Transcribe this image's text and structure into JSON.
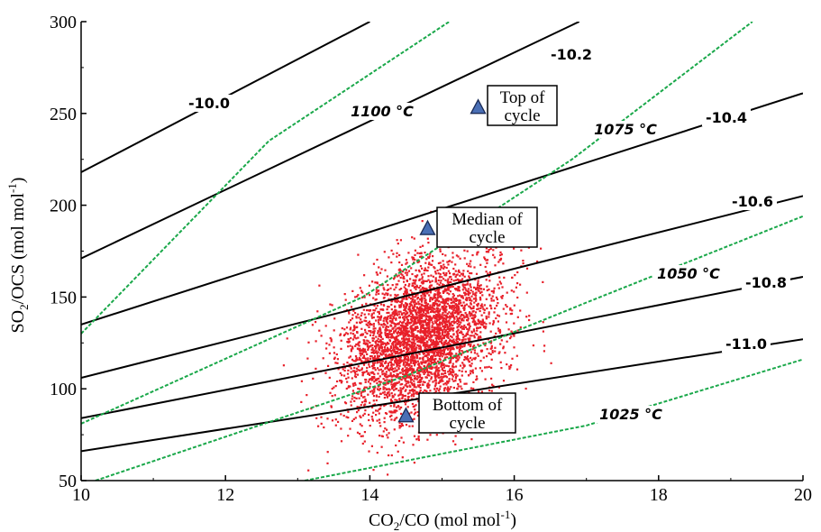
{
  "chart_data": {
    "type": "scatter",
    "xlabel_main": "CO",
    "xlabel_sub": "2",
    "xlabel_rest": "/CO (mol mol",
    "xlabel_sup": "-1",
    "xlabel_end": ")",
    "ylabel_main": "SO",
    "ylabel_sub": "2",
    "ylabel_rest": "/OCS (mol mol",
    "ylabel_sup": "-1",
    "ylabel_end": ")",
    "xlim": [
      10,
      20
    ],
    "ylim": [
      50,
      300
    ],
    "x_ticks": [
      "10",
      "12",
      "14",
      "16",
      "18",
      "20"
    ],
    "y_ticks": [
      "50",
      "100",
      "150",
      "200",
      "250",
      "300"
    ],
    "grid": false,
    "scatter_color": "#e8202a",
    "scatter_cloud": {
      "center": [
        14.7,
        128
      ],
      "sd": [
        0.55,
        22
      ],
      "n": 4000,
      "seed": 7
    },
    "markers": [
      {
        "label1": "Top of",
        "label2": "cycle",
        "x": 15.5,
        "y": 253
      },
      {
        "label1": "Median of",
        "label2": "cycle",
        "x": 14.8,
        "y": 187
      },
      {
        "label1": "Bottom of",
        "label2": "cycle",
        "x": 14.5,
        "y": 85
      }
    ],
    "marker_color": "#4a6fb5",
    "isolines": [
      {
        "label": "-10.0",
        "points": [
          [
            10,
            218
          ],
          [
            14.0,
            300
          ]
        ]
      },
      {
        "label": "-10.2",
        "points": [
          [
            10,
            171
          ],
          [
            16.9,
            300
          ]
        ]
      },
      {
        "label": "-10.4",
        "points": [
          [
            10,
            135
          ],
          [
            20,
            261
          ]
        ]
      },
      {
        "label": "-10.6",
        "points": [
          [
            10,
            106
          ],
          [
            20,
            205
          ]
        ]
      },
      {
        "label": "-10.8",
        "points": [
          [
            10,
            84
          ],
          [
            20,
            161
          ]
        ]
      },
      {
        "label": "-11.0",
        "points": [
          [
            10,
            66
          ],
          [
            20,
            127
          ]
        ]
      }
    ],
    "isotherms": [
      {
        "label": "1100 °C",
        "points": [
          [
            10,
            130
          ],
          [
            12.6,
            235
          ],
          [
            15.1,
            300
          ]
        ]
      },
      {
        "label": "1075 °C",
        "points": [
          [
            10,
            81
          ],
          [
            13.9,
            150
          ],
          [
            16.8,
            225
          ],
          [
            19.3,
            300
          ]
        ]
      },
      {
        "label": "1050 °C",
        "points": [
          [
            10.2,
            50
          ],
          [
            14.5,
            107
          ],
          [
            17.0,
            147
          ],
          [
            20,
            194
          ]
        ]
      },
      {
        "label": "1025 °C",
        "points": [
          [
            13.1,
            50
          ],
          [
            17.0,
            80
          ],
          [
            20,
            116
          ]
        ]
      }
    ],
    "isotherm_color": "#1aa84a"
  }
}
